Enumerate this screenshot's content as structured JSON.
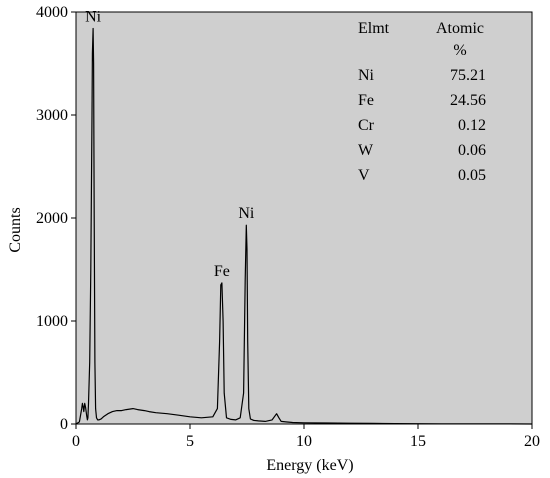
{
  "chart_data": {
    "type": "line",
    "title": "",
    "xlabel": "Energy (keV)",
    "ylabel": "Counts",
    "xlim": [
      0,
      20
    ],
    "ylim": [
      0,
      4000
    ],
    "x_ticks": [
      "0",
      "5",
      "10",
      "15",
      "20"
    ],
    "y_ticks": [
      "0",
      "1000",
      "2000",
      "3000",
      "4000"
    ],
    "grid": false,
    "plot_background": "#cfcfcf",
    "line_color": "#000000",
    "series": [
      {
        "x": [
          0.0,
          0.15,
          0.25,
          0.28,
          0.31,
          0.34,
          0.38,
          0.42,
          0.47,
          0.5,
          0.52,
          0.55,
          0.6,
          0.65,
          0.7,
          0.72,
          0.75,
          0.77,
          0.8,
          0.83,
          0.86,
          0.9,
          0.95,
          1.0,
          1.1,
          1.2,
          1.4,
          1.6,
          1.8,
          2.0,
          2.2,
          2.5,
          2.7,
          3.0,
          3.2,
          3.5,
          4.0,
          4.5,
          5.0,
          5.5,
          6.0,
          6.2,
          6.3,
          6.35,
          6.4,
          6.45,
          6.5,
          6.6,
          6.8,
          7.0,
          7.2,
          7.35,
          7.42,
          7.47,
          7.5,
          7.53,
          7.58,
          7.65,
          7.8,
          8.0,
          8.3,
          8.6,
          8.8,
          8.9,
          9.0,
          9.2,
          9.5,
          10.0,
          11.0,
          12.0,
          13.0,
          14.0,
          15.0,
          16.0,
          17.0,
          18.0,
          19.0,
          20.0
        ],
        "y": [
          0,
          20,
          150,
          200,
          170,
          120,
          200,
          160,
          80,
          40,
          60,
          200,
          600,
          1500,
          3000,
          3600,
          3840,
          3500,
          2000,
          600,
          150,
          60,
          40,
          40,
          50,
          70,
          100,
          120,
          130,
          130,
          140,
          150,
          140,
          130,
          120,
          110,
          100,
          85,
          70,
          60,
          70,
          150,
          800,
          1350,
          1370,
          1000,
          300,
          60,
          45,
          40,
          60,
          300,
          1400,
          1930,
          1700,
          800,
          150,
          50,
          35,
          30,
          25,
          40,
          100,
          60,
          25,
          20,
          15,
          12,
          10,
          8,
          6,
          4,
          3,
          2,
          2,
          1,
          1,
          0
        ]
      }
    ],
    "annotations": [
      {
        "text": "Ni",
        "x": 0.75,
        "y": 3840
      },
      {
        "text": "Fe",
        "x": 6.4,
        "y": 1370
      },
      {
        "text": "Ni",
        "x": 7.47,
        "y": 1930
      }
    ]
  },
  "composition_table": {
    "headers": [
      "Elmt",
      "Atomic",
      "%"
    ],
    "rows": [
      {
        "element": "Ni",
        "value": "75.21"
      },
      {
        "element": "Fe",
        "value": "24.56"
      },
      {
        "element": "Cr",
        "value": "0.12"
      },
      {
        "element": "W",
        "value": "0.06"
      },
      {
        "element": "V",
        "value": "0.05"
      }
    ]
  }
}
